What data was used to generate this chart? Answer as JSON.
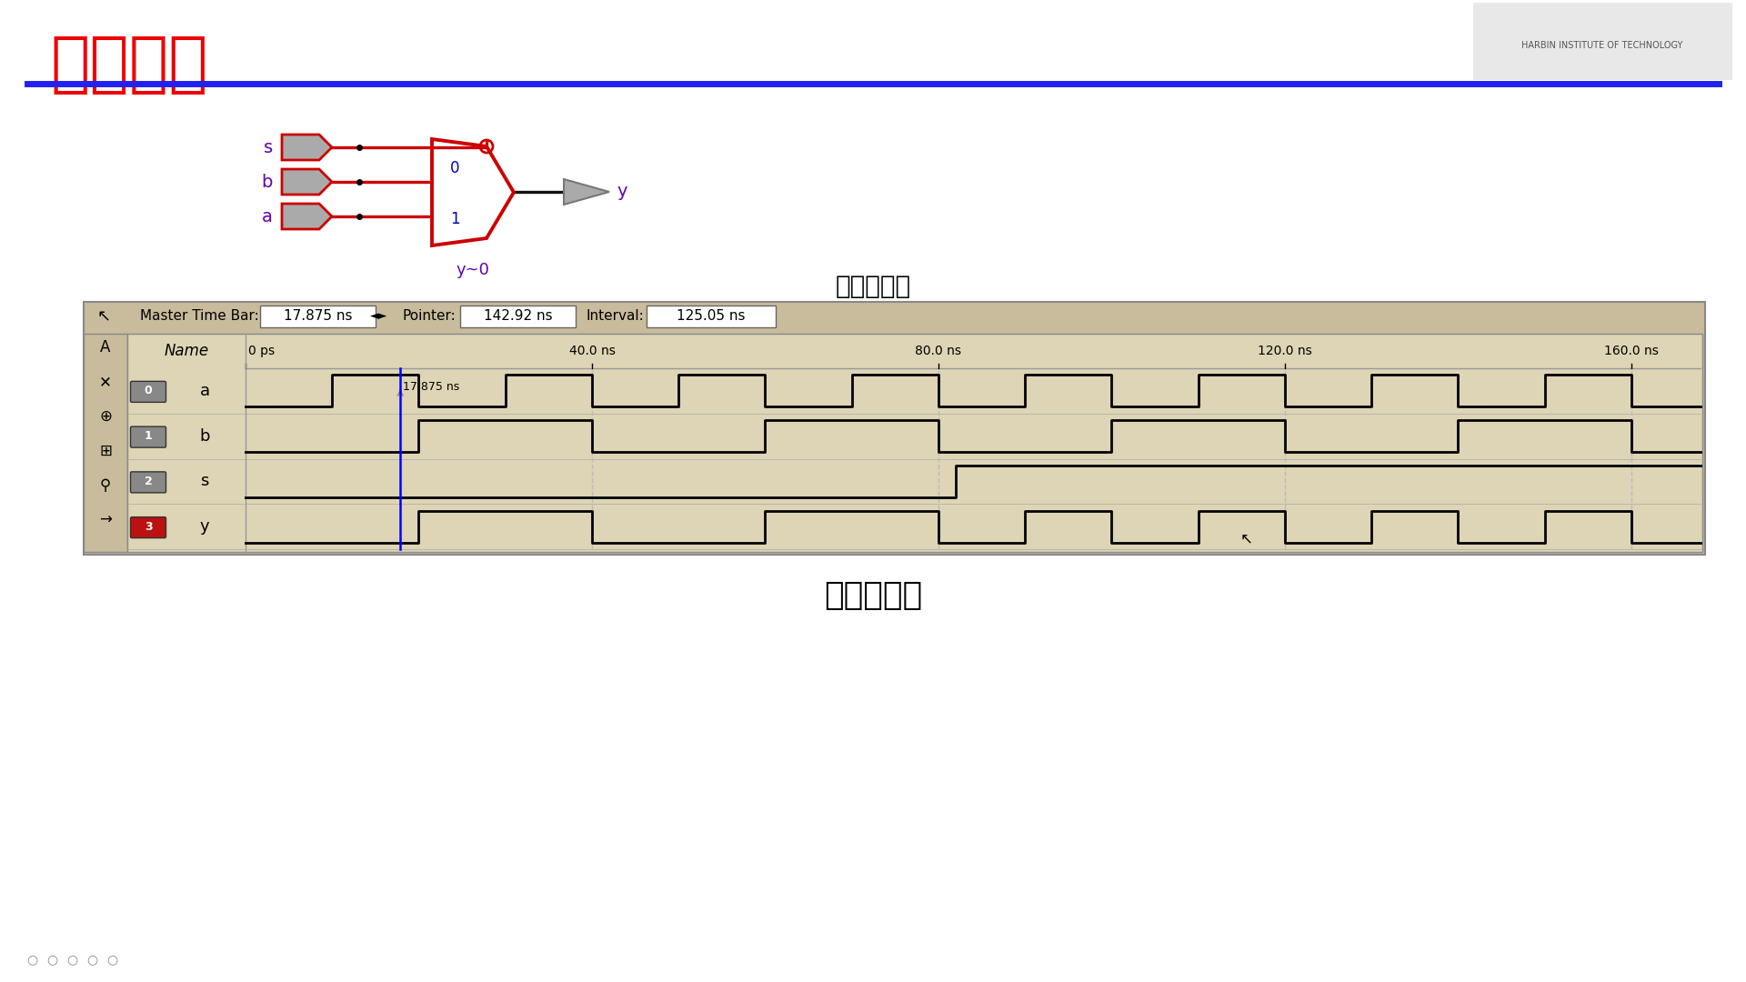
{
  "title": "仿真结果",
  "title_color": "#EE0000",
  "title_fontsize": 52,
  "bg_color": "#FFFFFF",
  "blue_line_color": "#2222EE",
  "circuit_label": "仿真电路图",
  "waveform_label": "仿真波形图",
  "circuit_label_fontsize": 20,
  "waveform_label_fontsize": 26,
  "mux_color": "#CC0000",
  "wire_red": "#CC0000",
  "wire_black": "#111111",
  "label_purple": "#6600AA",
  "port_blue": "#0000BB",
  "pin_face": "#AAAAAA",
  "pin_edge": "#777777",
  "sim_panel_bg": "#C8BC9C",
  "sim_panel_inner": "#DDD5B5",
  "master_time_bar": "17.875 ns",
  "pointer_val": "142.92 ns",
  "interval_val": "125.05 ns",
  "time_ticks": [
    "0 ps",
    "40.0 ns",
    "80.0 ns",
    "120.0 ns",
    "160.0 ns"
  ],
  "tick_times_ns": [
    0,
    40,
    80,
    120,
    160
  ],
  "marker_ns": 17.875,
  "t_max_ns": 168.0,
  "signal_names": [
    "a",
    "b",
    "s",
    "y"
  ],
  "sig_icon_colors": [
    "#888888",
    "#888888",
    "#888888",
    "#BB1111"
  ],
  "logo_text": "HARBIN INSTITUTE OF TECHNOLOGY"
}
